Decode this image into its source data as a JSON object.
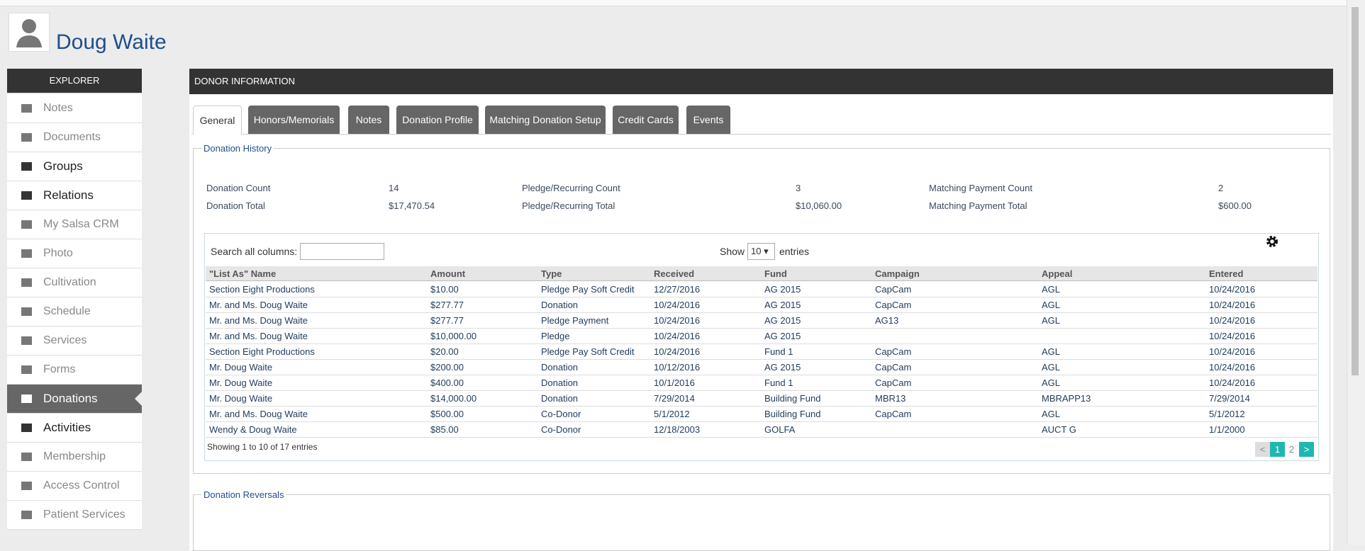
{
  "header": {
    "name": "Doug Waite"
  },
  "sidebar": {
    "title": "EXPLORER",
    "items": [
      "Notes",
      "Documents",
      "Groups",
      "Relations",
      "My Salsa CRM",
      "Photo",
      "Cultivation",
      "Schedule",
      "Services",
      "Forms",
      "Donations",
      "Activities",
      "Membership",
      "Access Control",
      "Patient Services"
    ]
  },
  "panel": {
    "title": "DONOR INFORMATION",
    "tabs": [
      "General",
      "Honors/Memorials",
      "Notes",
      "Donation Profile",
      "Matching Donation Setup",
      "Credit Cards",
      "Events"
    ]
  },
  "history": {
    "title": "Donation History",
    "summary": [
      [
        "Donation Count",
        "14",
        "Pledge/Recurring Count",
        "3",
        "Matching Payment Count",
        "2"
      ],
      [
        "Donation Total",
        "$17,470.54",
        "Pledge/Recurring Total",
        "$10,060.00",
        "Matching Payment Total",
        "$600.00"
      ]
    ],
    "search_label": "Search all columns:",
    "show_label": "Show",
    "show_value": "10",
    "entries_label": "entries",
    "columns": [
      "\"List As\" Name",
      "Amount",
      "Type",
      "Received",
      "Fund",
      "Campaign",
      "Appeal",
      "Entered"
    ],
    "rows": [
      [
        "Section Eight Productions",
        "$10.00",
        "Pledge Pay Soft Credit",
        "12/27/2016",
        "AG 2015",
        "CapCam",
        "AGL",
        "10/24/2016"
      ],
      [
        "Mr. and Ms. Doug Waite",
        "$277.77",
        "Donation",
        "10/24/2016",
        "AG 2015",
        "CapCam",
        "AGL",
        "10/24/2016"
      ],
      [
        "Mr. and Ms. Doug Waite",
        "$277.77",
        "Pledge Payment",
        "10/24/2016",
        "AG 2015",
        "AG13",
        "AGL",
        "10/24/2016"
      ],
      [
        "Mr. and Ms. Doug Waite",
        "$10,000.00",
        "Pledge",
        "10/24/2016",
        "AG 2015",
        null,
        null,
        "10/24/2016"
      ],
      [
        "Section Eight Productions",
        "$20.00",
        "Pledge Pay Soft Credit",
        "10/24/2016",
        "Fund 1",
        "CapCam",
        "AGL",
        "10/24/2016"
      ],
      [
        "Mr. Doug Waite",
        "$200.00",
        "Donation",
        "10/12/2016",
        "AG 2015",
        "CapCam",
        "AGL",
        "10/24/2016"
      ],
      [
        "Mr. Doug Waite",
        "$400.00",
        "Donation",
        "10/1/2016",
        "Fund 1",
        "CapCam",
        "AGL",
        "10/24/2016"
      ],
      [
        "Mr. Doug Waite",
        "$14,000.00",
        "Donation",
        "7/29/2014",
        "Building Fund",
        "MBR13",
        "MBRAPP13",
        "7/29/2014"
      ],
      [
        "Mr. and Ms. Doug Waite",
        "$500.00",
        "Co-Donor",
        "5/1/2012",
        "Building Fund",
        "CapCam",
        "AGL",
        "5/1/2012"
      ],
      [
        "Wendy & Doug Waite",
        "$85.00",
        "Co-Donor",
        "12/18/2003",
        "GOLFA",
        null,
        "AUCT G",
        "1/1/2000"
      ]
    ],
    "info": "Showing 1 to 10 of 17 entries",
    "pages": [
      "<",
      "1",
      "2",
      ">"
    ]
  },
  "reversals": {
    "title": "Donation Reversals"
  }
}
